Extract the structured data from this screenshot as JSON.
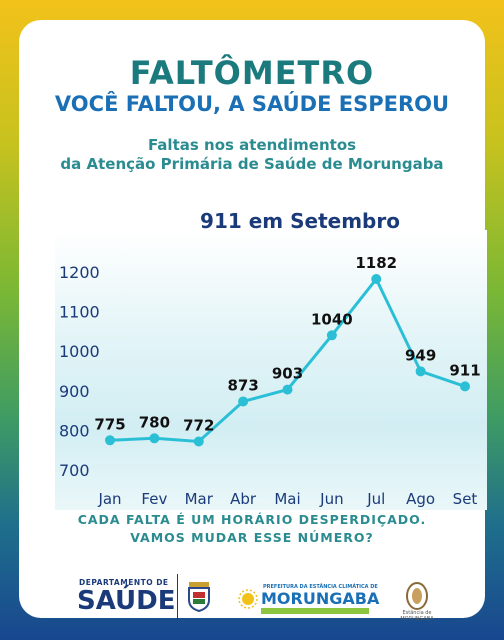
{
  "header": {
    "title": "FALTÔMETRO",
    "subtitle": "VOCÊ FALTOU, A SAÚDE ESPEROU",
    "description_line1": "Faltas nos atendimentos",
    "description_line2": "da Atenção Primária de Saúde de Morungaba"
  },
  "chart_data": {
    "type": "line",
    "title": "911 em Setembro",
    "categories": [
      "Jan",
      "Fev",
      "Mar",
      "Abr",
      "Mai",
      "Jun",
      "Jul",
      "Ago",
      "Set"
    ],
    "values": [
      775,
      780,
      772,
      873,
      903,
      1040,
      1182,
      949,
      911
    ],
    "yticks": [
      700,
      800,
      900,
      1000,
      1100,
      1200
    ],
    "ylim": [
      700,
      1230
    ],
    "xlabel": "",
    "ylabel": "",
    "grid": false,
    "line_color": "#2bbfd6"
  },
  "footer": {
    "line1": "CADA FALTA É UM HORÁRIO DESPERDIÇADO.",
    "line2": "VAMOS MUDAR ESSE NÚMERO?"
  },
  "logos": {
    "dept_small": "DEPARTAMENTO DE",
    "dept_big": "SAÚDE",
    "prefeitura": "PREFEITURA DA ESTÂNCIA CLIMÁTICA DE",
    "city": "MORUNGABA",
    "slogan": "UNIÃO · PARA · CRESCER · E · EVOLUIR",
    "estancia": "Estância de MORUNGABA"
  }
}
